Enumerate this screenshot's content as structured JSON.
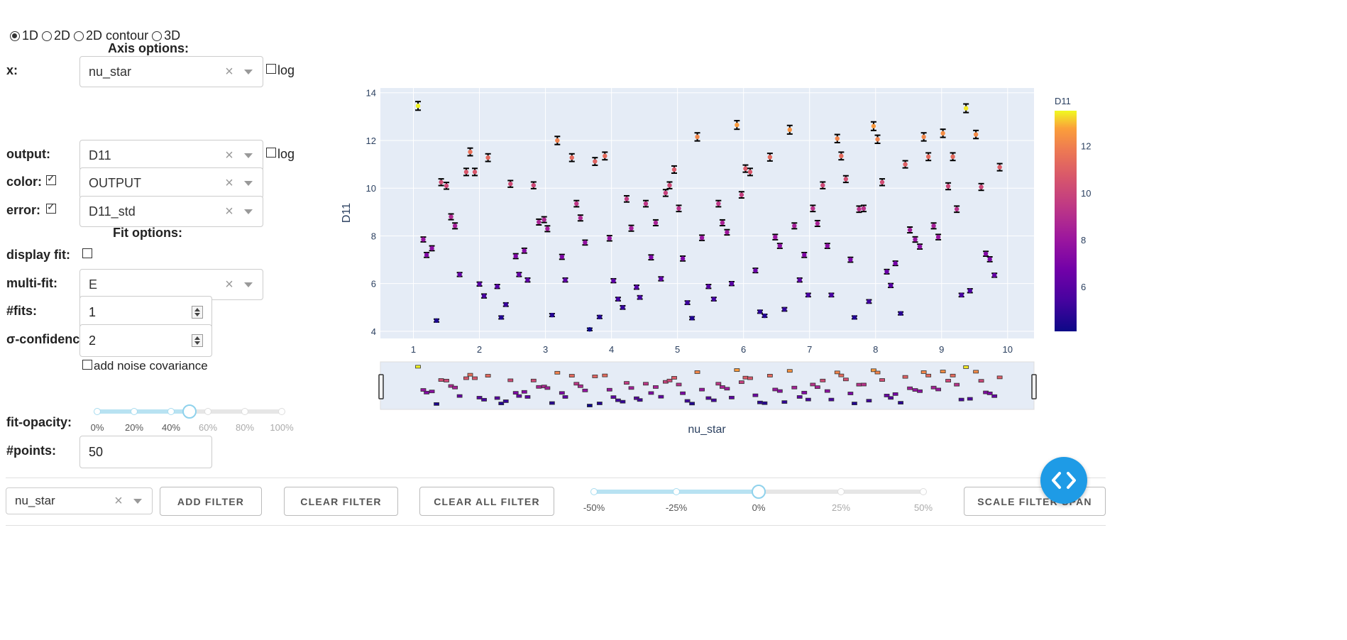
{
  "plot_type": {
    "options": [
      "1D",
      "2D",
      "2D contour",
      "3D"
    ],
    "selected": "1D"
  },
  "axis_options": {
    "header": "Axis options:",
    "x": {
      "label": "x:",
      "value": "nu_star",
      "log_label": "log",
      "log_checked": false
    },
    "output": {
      "label": "output:",
      "value": "D11",
      "log_label": "log",
      "log_checked": false
    },
    "color": {
      "label": "color:",
      "checked": true,
      "value": "OUTPUT"
    },
    "error": {
      "label": "error:",
      "checked": true,
      "value": "D11_std"
    }
  },
  "fit_options": {
    "header": "Fit options:",
    "display_fit": {
      "label": "display fit:",
      "checked": false
    },
    "multi_fit": {
      "label": "multi-fit:",
      "value": "E"
    },
    "n_fits": {
      "label": "#fits:",
      "value": "1"
    },
    "sigma_confidence": {
      "label": "σ-confidence:",
      "value": "2"
    },
    "add_noise": {
      "label": "add noise covariance",
      "checked": false
    },
    "fit_opacity": {
      "label": "fit-opacity:",
      "value_percent": 50,
      "marks": [
        "0%",
        "20%",
        "40%",
        "60%",
        "80%",
        "100%"
      ]
    },
    "n_points": {
      "label": "#points:",
      "value": "50"
    }
  },
  "filter_bar": {
    "filter_select": "nu_star",
    "add_filter": "ADD FILTER",
    "clear_filter": "CLEAR FILTER",
    "clear_all_filter": "CLEAR ALL FILTER",
    "scale_filter_span": "SCALE FILTER SPAN",
    "span_percent": 0,
    "span_marks": [
      "-50%",
      "-25%",
      "0%",
      "25%",
      "50%"
    ]
  },
  "fab_icon": "code-icon",
  "colors": {
    "plot_bg": "#e5ecf6",
    "accent": "#1e9be6",
    "slider_fill": "#b8e2f2"
  },
  "chart_data": {
    "type": "scatter",
    "xlabel": "nu_star",
    "ylabel": "D11",
    "xlim": [
      0.5,
      10.4
    ],
    "ylim": [
      3.7,
      14.2
    ],
    "xticks": [
      1,
      2,
      3,
      4,
      5,
      6,
      7,
      8,
      9,
      10
    ],
    "yticks": [
      4,
      6,
      8,
      10,
      12,
      14
    ],
    "colorbar": {
      "title": "D11",
      "ticks": [
        6,
        8,
        10,
        12
      ],
      "range": [
        4.1,
        13.5
      ],
      "colorscale": "plasma"
    },
    "error_bars": true,
    "range_slider": true,
    "grid": true,
    "points": [
      [
        1.07,
        13.45,
        0.18
      ],
      [
        1.15,
        7.85,
        0.1
      ],
      [
        1.2,
        7.2,
        0.1
      ],
      [
        1.28,
        7.48,
        0.1
      ],
      [
        1.35,
        4.45,
        0.06
      ],
      [
        1.42,
        10.25,
        0.14
      ],
      [
        1.5,
        10.1,
        0.14
      ],
      [
        1.57,
        8.8,
        0.12
      ],
      [
        1.63,
        8.42,
        0.12
      ],
      [
        1.7,
        6.38,
        0.08
      ],
      [
        1.8,
        10.68,
        0.15
      ],
      [
        1.86,
        11.52,
        0.16
      ],
      [
        1.93,
        10.68,
        0.15
      ],
      [
        2.0,
        5.98,
        0.08
      ],
      [
        2.07,
        5.48,
        0.08
      ],
      [
        2.13,
        11.28,
        0.16
      ],
      [
        2.27,
        5.88,
        0.08
      ],
      [
        2.33,
        4.58,
        0.06
      ],
      [
        2.4,
        5.12,
        0.07
      ],
      [
        2.47,
        10.18,
        0.14
      ],
      [
        2.55,
        7.15,
        0.1
      ],
      [
        2.6,
        6.38,
        0.08
      ],
      [
        2.68,
        7.38,
        0.1
      ],
      [
        2.73,
        6.15,
        0.08
      ],
      [
        2.82,
        10.12,
        0.14
      ],
      [
        2.9,
        8.58,
        0.12
      ],
      [
        2.98,
        8.68,
        0.12
      ],
      [
        3.03,
        8.3,
        0.12
      ],
      [
        3.1,
        4.68,
        0.06
      ],
      [
        3.18,
        12.0,
        0.17
      ],
      [
        3.25,
        7.12,
        0.1
      ],
      [
        3.3,
        6.15,
        0.08
      ],
      [
        3.4,
        11.28,
        0.16
      ],
      [
        3.47,
        9.35,
        0.13
      ],
      [
        3.53,
        8.75,
        0.12
      ],
      [
        3.6,
        7.72,
        0.1
      ],
      [
        3.67,
        4.08,
        0.05
      ],
      [
        3.75,
        11.12,
        0.16
      ],
      [
        3.82,
        4.6,
        0.06
      ],
      [
        3.9,
        11.35,
        0.16
      ],
      [
        3.97,
        7.9,
        0.11
      ],
      [
        4.03,
        6.12,
        0.08
      ],
      [
        4.1,
        5.35,
        0.07
      ],
      [
        4.17,
        5.0,
        0.07
      ],
      [
        4.23,
        9.55,
        0.13
      ],
      [
        4.3,
        8.32,
        0.12
      ],
      [
        4.38,
        5.85,
        0.08
      ],
      [
        4.43,
        5.42,
        0.07
      ],
      [
        4.52,
        9.35,
        0.13
      ],
      [
        4.6,
        7.1,
        0.1
      ],
      [
        4.67,
        8.55,
        0.12
      ],
      [
        4.75,
        6.2,
        0.08
      ],
      [
        4.82,
        9.8,
        0.14
      ],
      [
        4.88,
        10.12,
        0.14
      ],
      [
        4.95,
        10.78,
        0.15
      ],
      [
        5.02,
        9.15,
        0.13
      ],
      [
        5.08,
        7.05,
        0.1
      ],
      [
        5.15,
        5.2,
        0.07
      ],
      [
        5.22,
        4.55,
        0.06
      ],
      [
        5.3,
        12.15,
        0.17
      ],
      [
        5.37,
        7.92,
        0.11
      ],
      [
        5.47,
        5.88,
        0.08
      ],
      [
        5.55,
        5.35,
        0.07
      ],
      [
        5.62,
        9.35,
        0.13
      ],
      [
        5.68,
        8.55,
        0.12
      ],
      [
        5.75,
        8.15,
        0.11
      ],
      [
        5.82,
        6.0,
        0.08
      ],
      [
        5.9,
        12.65,
        0.18
      ],
      [
        5.97,
        9.72,
        0.13
      ],
      [
        6.03,
        10.82,
        0.15
      ],
      [
        6.1,
        10.68,
        0.15
      ],
      [
        6.18,
        6.55,
        0.09
      ],
      [
        6.25,
        4.82,
        0.06
      ],
      [
        6.32,
        4.65,
        0.06
      ],
      [
        6.4,
        11.3,
        0.16
      ],
      [
        6.48,
        7.95,
        0.11
      ],
      [
        6.55,
        7.58,
        0.1
      ],
      [
        6.62,
        4.92,
        0.07
      ],
      [
        6.7,
        12.45,
        0.18
      ],
      [
        6.77,
        8.42,
        0.12
      ],
      [
        6.85,
        6.15,
        0.08
      ],
      [
        6.92,
        7.2,
        0.1
      ],
      [
        6.98,
        5.52,
        0.07
      ],
      [
        7.05,
        9.15,
        0.13
      ],
      [
        7.12,
        8.52,
        0.12
      ],
      [
        7.2,
        10.12,
        0.14
      ],
      [
        7.27,
        7.58,
        0.1
      ],
      [
        7.33,
        5.52,
        0.07
      ],
      [
        7.42,
        12.08,
        0.17
      ],
      [
        7.48,
        11.35,
        0.16
      ],
      [
        7.55,
        10.38,
        0.14
      ],
      [
        7.62,
        7.0,
        0.1
      ],
      [
        7.68,
        4.58,
        0.06
      ],
      [
        7.75,
        9.12,
        0.13
      ],
      [
        7.82,
        9.15,
        0.13
      ],
      [
        7.9,
        5.25,
        0.07
      ],
      [
        7.97,
        12.6,
        0.18
      ],
      [
        8.03,
        12.05,
        0.17
      ],
      [
        8.1,
        10.25,
        0.14
      ],
      [
        8.17,
        6.5,
        0.09
      ],
      [
        8.23,
        5.92,
        0.08
      ],
      [
        8.3,
        6.85,
        0.09
      ],
      [
        8.38,
        4.75,
        0.06
      ],
      [
        8.45,
        11.0,
        0.15
      ],
      [
        8.52,
        8.25,
        0.12
      ],
      [
        8.6,
        7.85,
        0.11
      ],
      [
        8.67,
        7.55,
        0.1
      ],
      [
        8.73,
        12.15,
        0.17
      ],
      [
        8.8,
        11.32,
        0.16
      ],
      [
        8.88,
        8.42,
        0.12
      ],
      [
        8.95,
        7.95,
        0.11
      ],
      [
        9.02,
        12.3,
        0.17
      ],
      [
        9.1,
        10.08,
        0.14
      ],
      [
        9.17,
        11.32,
        0.16
      ],
      [
        9.23,
        9.12,
        0.13
      ],
      [
        9.3,
        5.52,
        0.07
      ],
      [
        9.37,
        13.35,
        0.18
      ],
      [
        9.43,
        5.7,
        0.08
      ],
      [
        9.52,
        12.25,
        0.17
      ],
      [
        9.6,
        10.05,
        0.14
      ],
      [
        9.67,
        7.25,
        0.1
      ],
      [
        9.73,
        7.02,
        0.1
      ],
      [
        9.8,
        6.35,
        0.08
      ],
      [
        9.88,
        10.88,
        0.15
      ]
    ]
  }
}
